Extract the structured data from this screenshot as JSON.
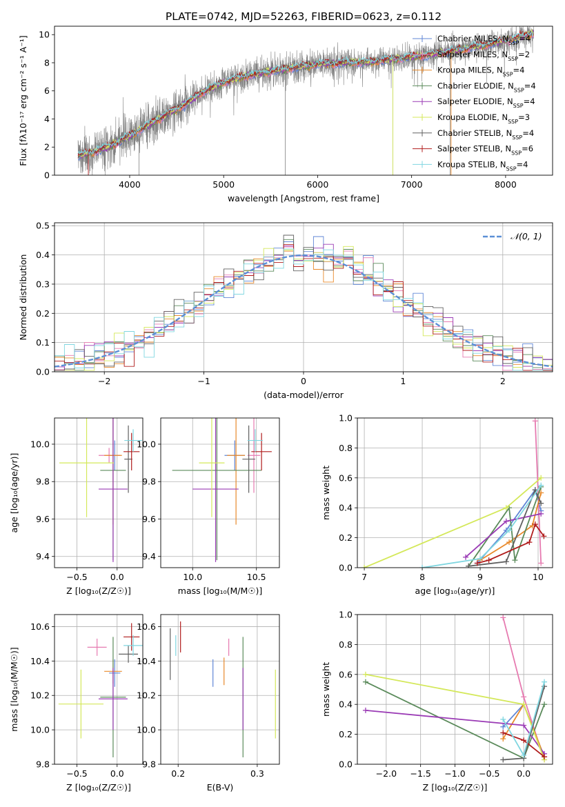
{
  "title": "PLATE=0742, MJD=52263, FIBERID=0623, z=0.112",
  "colors": {
    "chabrier_miles": "#5f86d6",
    "salpeter_miles": "#e67ab0",
    "kroupa_miles": "#e8892a",
    "chabrier_elodie": "#5a8a5a",
    "salpeter_elodie": "#9a3ab5",
    "kroupa_elodie": "#d4e85a",
    "chabrier_stelib": "#606060",
    "salpeter_stelib": "#b01c1c",
    "kroupa_stelib": "#7fd6e0",
    "data": "#808080"
  },
  "chart_data": [
    {
      "id": "spectrum",
      "type": "line",
      "xlabel": "wavelength [Angstrom, rest frame]",
      "ylabel": "Flux [fλ10⁻¹⁷ erg cm⁻² s⁻¹ A⁻¹]",
      "xlim": [
        3200,
        8500
      ],
      "ylim": [
        0,
        10.6
      ],
      "xticks": [
        4000,
        5000,
        6000,
        7000,
        8000
      ],
      "yticks": [
        0,
        2,
        4,
        6,
        8,
        10
      ],
      "grid": false,
      "legend_position": "right",
      "legend": [
        {
          "label": "Chabrier MILES, N",
          "sub": "SSP",
          "tail": "=4",
          "color": "chabrier_miles"
        },
        {
          "label": "Salpeter MILES, N",
          "sub": "SSP",
          "tail": "=2",
          "color": "salpeter_miles"
        },
        {
          "label": "Kroupa MILES, N",
          "sub": "SSP",
          "tail": "=4",
          "color": "kroupa_miles"
        },
        {
          "label": "Chabrier ELODIE, N",
          "sub": "SSP",
          "tail": "=4",
          "color": "chabrier_elodie"
        },
        {
          "label": "Salpeter ELODIE, N",
          "sub": "SSP",
          "tail": "=4",
          "color": "salpeter_elodie"
        },
        {
          "label": "Kroupa ELODIE, N",
          "sub": "SSP",
          "tail": "=3",
          "color": "kroupa_elodie"
        },
        {
          "label": "Chabrier STELIB, N",
          "sub": "SSP",
          "tail": "=4",
          "color": "chabrier_stelib"
        },
        {
          "label": "Salpeter STELIB, N",
          "sub": "SSP",
          "tail": "=6",
          "color": "salpeter_stelib"
        },
        {
          "label": "Kroupa STELIB, N",
          "sub": "SSP",
          "tail": "=4",
          "color": "kroupa_stelib"
        }
      ],
      "continuum": {
        "x": [
          3450,
          3600,
          3800,
          4000,
          4200,
          4500,
          4800,
          5000,
          5200,
          5500,
          5800,
          6000,
          6300,
          6600,
          7000,
          7400,
          7800,
          8200,
          8300
        ],
        "y": [
          1.4,
          1.6,
          2.1,
          2.8,
          3.6,
          4.7,
          6.0,
          6.6,
          7.0,
          7.4,
          7.7,
          7.9,
          8.0,
          8.1,
          8.4,
          8.8,
          9.3,
          9.9,
          10.1
        ]
      },
      "data_range": [
        3450,
        8300
      ]
    },
    {
      "id": "residuals",
      "type": "histogram",
      "xlabel": "(data-model)/error",
      "ylabel": "Normed distribution",
      "xlim": [
        -2.5,
        2.5
      ],
      "ylim": [
        0,
        0.51
      ],
      "xticks": [
        -2,
        -1,
        0,
        1,
        2
      ],
      "yticks": [
        0,
        0.1,
        0.2,
        0.3,
        0.4,
        0.5
      ],
      "grid": true,
      "legend_position": "top-right",
      "legend": [
        {
          "label": "𝒩(0, 1)",
          "color": "#5b8fd6"
        }
      ],
      "bin_width": 0.1
    },
    {
      "id": "age_vs_Z",
      "type": "errorbar",
      "xlabel": "Z [log₁₀(Z/Z☉)]",
      "ylabel": "age  [log₁₀(age/yr)]",
      "xlim": [
        -0.78,
        0.32
      ],
      "ylim": [
        9.34,
        10.14
      ],
      "xticks": [
        -0.5,
        0.0
      ],
      "yticks": [
        9.4,
        9.6,
        9.8,
        10.0
      ],
      "grid": true,
      "points": [
        {
          "x": -0.03,
          "y": 9.94,
          "xe": 0.07,
          "ye": 0.08,
          "color": "chabrier_miles"
        },
        {
          "x": -0.1,
          "y": 9.94,
          "xe": 0.13,
          "ye": 0.04,
          "color": "salpeter_miles"
        },
        {
          "x": -0.05,
          "y": 9.94,
          "xe": 0.11,
          "ye": 0.37,
          "color": "kroupa_miles"
        },
        {
          "x": -0.05,
          "y": 9.86,
          "xe": 0.16,
          "ye": 0.48,
          "color": "chabrier_elodie"
        },
        {
          "x": -0.05,
          "y": 9.76,
          "xe": 0.18,
          "ye": 0.39,
          "color": "salpeter_elodie"
        },
        {
          "x": -0.38,
          "y": 9.9,
          "xe": 0.34,
          "ye": 0.29,
          "color": "kroupa_elodie"
        },
        {
          "x": 0.14,
          "y": 9.92,
          "xe": 0.05,
          "ye": 0.18,
          "color": "chabrier_stelib"
        },
        {
          "x": 0.18,
          "y": 9.96,
          "xe": 0.1,
          "ye": 0.1,
          "color": "salpeter_stelib"
        },
        {
          "x": 0.2,
          "y": 10.02,
          "xe": 0.11,
          "ye": 0.06,
          "color": "kroupa_stelib"
        }
      ]
    },
    {
      "id": "age_vs_mass",
      "type": "errorbar",
      "xlabel": "mass [log₁₀(M/M☉)]",
      "ylabel": "",
      "xlim": [
        9.75,
        10.68
      ],
      "ylim": [
        9.34,
        10.14
      ],
      "xticks": [
        10.0,
        10.5
      ],
      "yticks": [
        9.4,
        9.6,
        9.8,
        10.0
      ],
      "grid": true,
      "points": [
        {
          "x": 10.33,
          "y": 9.94,
          "xe": 0.08,
          "ye": 0.08,
          "color": "chabrier_miles"
        },
        {
          "x": 10.48,
          "y": 9.94,
          "xe": 0.05,
          "ye": 0.2,
          "color": "salpeter_miles"
        },
        {
          "x": 10.34,
          "y": 9.94,
          "xe": 0.07,
          "ye": 0.37,
          "color": "kroupa_miles"
        },
        {
          "x": 10.19,
          "y": 9.86,
          "xe": 0.35,
          "ye": 0.48,
          "color": "chabrier_elodie"
        },
        {
          "x": 10.18,
          "y": 9.76,
          "xe": 0.18,
          "ye": 0.39,
          "color": "salpeter_elodie"
        },
        {
          "x": 10.15,
          "y": 9.9,
          "xe": 0.1,
          "ye": 0.29,
          "color": "kroupa_elodie"
        },
        {
          "x": 10.44,
          "y": 9.92,
          "xe": 0.05,
          "ye": 0.18,
          "color": "chabrier_stelib"
        },
        {
          "x": 10.54,
          "y": 9.96,
          "xe": 0.08,
          "ye": 0.1,
          "color": "salpeter_stelib"
        },
        {
          "x": 10.49,
          "y": 10.02,
          "xe": 0.06,
          "ye": 0.06,
          "color": "kroupa_stelib"
        }
      ]
    },
    {
      "id": "massweight_vs_age",
      "type": "line",
      "xlabel": "age  [log₁₀(age/yr)]",
      "ylabel": "mass weight",
      "xlim": [
        6.88,
        10.25
      ],
      "ylim": [
        0,
        1.0
      ],
      "xticks": [
        7,
        8,
        9,
        10
      ],
      "yticks": [
        0,
        0.2,
        0.4,
        0.6,
        0.8,
        1.0
      ],
      "grid": true,
      "series": [
        {
          "color": "chabrier_miles",
          "x": [
            8.95,
            9.45,
            9.95,
            10.05
          ],
          "y": [
            0.03,
            0.25,
            0.52,
            0.38
          ]
        },
        {
          "color": "salpeter_miles",
          "x": [
            9.95,
            10.05
          ],
          "y": [
            0.98,
            0.03
          ]
        },
        {
          "color": "kroupa_miles",
          "x": [
            9.0,
            9.5,
            9.9,
            10.05
          ],
          "y": [
            0.05,
            0.17,
            0.28,
            0.5
          ]
        },
        {
          "color": "chabrier_elodie",
          "x": [
            8.8,
            9.5,
            9.6,
            10.05
          ],
          "y": [
            0.01,
            0.4,
            0.05,
            0.54
          ]
        },
        {
          "color": "salpeter_elodie",
          "x": [
            8.75,
            9.45,
            10.05
          ],
          "y": [
            0.07,
            0.31,
            0.36
          ]
        },
        {
          "color": "kroupa_elodie",
          "x": [
            7.0,
            9.45,
            10.05
          ],
          "y": [
            0.0,
            0.4,
            0.6
          ]
        },
        {
          "color": "chabrier_stelib",
          "x": [
            8.8,
            9.45,
            9.95,
            10.05
          ],
          "y": [
            0.01,
            0.04,
            0.52,
            0.43
          ]
        },
        {
          "color": "salpeter_stelib",
          "x": [
            8.95,
            9.15,
            9.85,
            9.95,
            10.1
          ],
          "y": [
            0.03,
            0.05,
            0.17,
            0.29,
            0.21
          ]
        },
        {
          "color": "kroupa_stelib",
          "x": [
            8.0,
            9.0,
            9.5,
            10.05
          ],
          "y": [
            0.0,
            0.06,
            0.25,
            0.55
          ]
        }
      ]
    },
    {
      "id": "mass_vs_Z",
      "type": "errorbar",
      "xlabel": "Z [log₁₀(Z/Z☉)]",
      "ylabel": "mass [log₁₀(M/M☉)]",
      "xlim": [
        -0.78,
        0.32
      ],
      "ylim": [
        9.8,
        10.67
      ],
      "xticks": [
        -0.5,
        0.0
      ],
      "yticks": [
        9.8,
        10.0,
        10.2,
        10.4,
        10.6
      ],
      "grid": true,
      "points": [
        {
          "x": -0.03,
          "y": 10.33,
          "xe": 0.07,
          "ye": 0.08,
          "color": "chabrier_miles"
        },
        {
          "x": -0.25,
          "y": 10.48,
          "xe": 0.12,
          "ye": 0.05,
          "color": "salpeter_miles"
        },
        {
          "x": -0.05,
          "y": 10.34,
          "xe": 0.11,
          "ye": 0.07,
          "color": "kroupa_miles"
        },
        {
          "x": -0.05,
          "y": 10.19,
          "xe": 0.16,
          "ye": 0.35,
          "color": "chabrier_elodie"
        },
        {
          "x": -0.05,
          "y": 10.18,
          "xe": 0.18,
          "ye": 0.18,
          "color": "salpeter_elodie"
        },
        {
          "x": -0.45,
          "y": 10.15,
          "xe": 0.28,
          "ye": 0.2,
          "color": "kroupa_elodie"
        },
        {
          "x": 0.14,
          "y": 10.44,
          "xe": 0.12,
          "ye": 0.05,
          "color": "chabrier_stelib"
        },
        {
          "x": 0.18,
          "y": 10.54,
          "xe": 0.1,
          "ye": 0.08,
          "color": "salpeter_stelib"
        },
        {
          "x": 0.2,
          "y": 10.49,
          "xe": 0.12,
          "ye": 0.06,
          "color": "kroupa_stelib"
        }
      ]
    },
    {
      "id": "mass_vs_ebv",
      "type": "errorbar",
      "xlabel": "E(B-V)",
      "ylabel": "",
      "xlim": [
        0.178,
        0.328
      ],
      "ylim": [
        9.8,
        10.67
      ],
      "xticks": [
        0.2,
        0.3
      ],
      "yticks": [
        9.8,
        10.0,
        10.2,
        10.4,
        10.6
      ],
      "grid": true,
      "points": [
        {
          "x": 0.244,
          "y": 10.33,
          "xe": 0,
          "ye": 0.08,
          "color": "chabrier_miles"
        },
        {
          "x": 0.264,
          "y": 10.48,
          "xe": 0,
          "ye": 0.05,
          "color": "salpeter_miles"
        },
        {
          "x": 0.258,
          "y": 10.34,
          "xe": 0,
          "ye": 0.08,
          "color": "kroupa_miles"
        },
        {
          "x": 0.282,
          "y": 10.19,
          "xe": 0,
          "ye": 0.35,
          "color": "chabrier_elodie"
        },
        {
          "x": 0.282,
          "y": 10.18,
          "xe": 0,
          "ye": 0.18,
          "color": "salpeter_elodie"
        },
        {
          "x": 0.323,
          "y": 10.15,
          "xe": 0,
          "ye": 0.2,
          "color": "kroupa_elodie"
        },
        {
          "x": 0.19,
          "y": 10.44,
          "xe": 0,
          "ye": 0.15,
          "color": "chabrier_stelib"
        },
        {
          "x": 0.203,
          "y": 10.54,
          "xe": 0,
          "ye": 0.09,
          "color": "salpeter_stelib"
        },
        {
          "x": 0.197,
          "y": 10.49,
          "xe": 0,
          "ye": 0.06,
          "color": "kroupa_stelib"
        }
      ]
    },
    {
      "id": "massweight_vs_Z",
      "type": "line",
      "xlabel": "Z [log₁₀(Z/Z☉)]",
      "ylabel": "mass weight",
      "xlim": [
        -2.42,
        0.42
      ],
      "ylim": [
        0,
        1.0
      ],
      "xticks": [
        -2.0,
        -1.5,
        -1.0,
        -0.5,
        0.0
      ],
      "yticks": [
        0,
        0.2,
        0.4,
        0.6,
        0.8,
        1.0
      ],
      "grid": true,
      "series": [
        {
          "color": "chabrier_miles",
          "x": [
            -0.3,
            0.0,
            0.3
          ],
          "y": [
            0.25,
            0.4,
            0.05
          ]
        },
        {
          "color": "salpeter_miles",
          "x": [
            -0.3,
            0.0,
            0.3
          ],
          "y": [
            0.98,
            0.45,
            0.03
          ]
        },
        {
          "color": "kroupa_miles",
          "x": [
            -0.3,
            0.0,
            0.3
          ],
          "y": [
            0.17,
            0.4,
            0.05
          ]
        },
        {
          "color": "chabrier_elodie",
          "x": [
            -2.3,
            0.0,
            0.3
          ],
          "y": [
            0.55,
            0.04,
            0.4
          ]
        },
        {
          "color": "salpeter_elodie",
          "x": [
            -2.3,
            0.0,
            0.3
          ],
          "y": [
            0.36,
            0.26,
            0.07
          ]
        },
        {
          "color": "kroupa_elodie",
          "x": [
            -2.3,
            0.0,
            0.3
          ],
          "y": [
            0.6,
            0.4,
            0.03
          ]
        },
        {
          "color": "chabrier_stelib",
          "x": [
            -0.3,
            0.0,
            0.3
          ],
          "y": [
            0.03,
            0.04,
            0.52
          ]
        },
        {
          "color": "salpeter_stelib",
          "x": [
            -0.3,
            0.0,
            0.3
          ],
          "y": [
            0.21,
            0.16,
            0.05
          ]
        },
        {
          "color": "kroupa_stelib",
          "x": [
            -0.3,
            0.0,
            0.3
          ],
          "y": [
            0.3,
            0.06,
            0.55
          ]
        }
      ]
    }
  ]
}
